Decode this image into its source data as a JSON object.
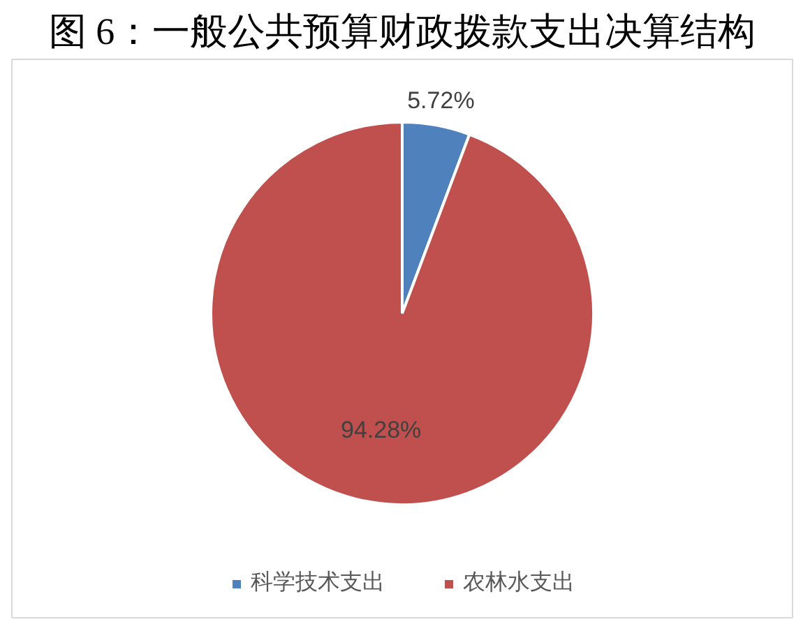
{
  "chart_data": {
    "type": "pie",
    "title": "图 6：一般公共预算财政拨款支出决算结构",
    "categories": [
      "科学技术支出",
      "农林水支出"
    ],
    "values": [
      5.72,
      94.28
    ],
    "colors": [
      "#4f81bd",
      "#c0504d"
    ],
    "value_labels": [
      "5.72%",
      "94.28%"
    ],
    "legend": "bottom"
  }
}
